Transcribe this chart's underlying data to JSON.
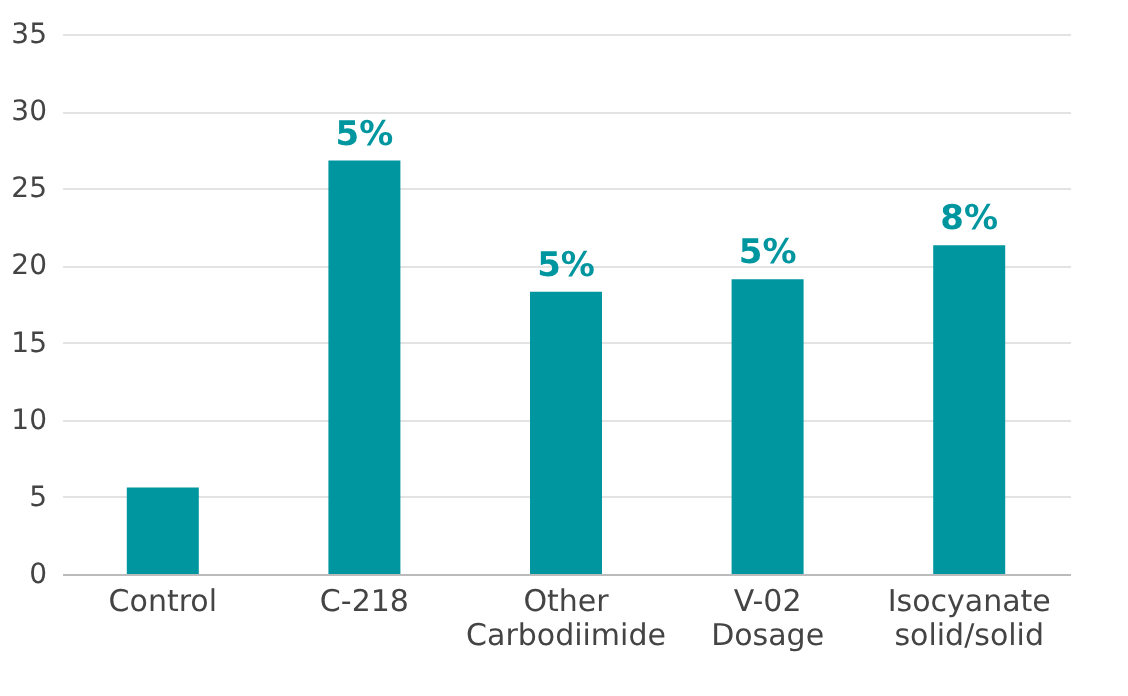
{
  "chart_data": {
    "type": "bar",
    "categories": [
      "Control",
      "C-218",
      "Other Carbodiimide",
      "V-02 Dosage",
      "Isocyanate solid/solid"
    ],
    "values": [
      5.6,
      26.8,
      18.3,
      19.1,
      21.3
    ],
    "color": "#00969f",
    "annotations": [
      {
        "text": "5%",
        "x": "C-218",
        "y": 26.8
      },
      {
        "text": "5%",
        "x": "Other Carbodiimide",
        "y": 18.3
      },
      {
        "text": "5%",
        "x": "V-02 Dosage",
        "y": 19.1
      },
      {
        "text": "8%",
        "x": "Isocyanate solid/solid",
        "y": 21.3
      }
    ],
    "ylim": [
      0,
      35
    ],
    "yticks": [
      0,
      5,
      10,
      15,
      20,
      25,
      30,
      35
    ],
    "grid": "y"
  }
}
